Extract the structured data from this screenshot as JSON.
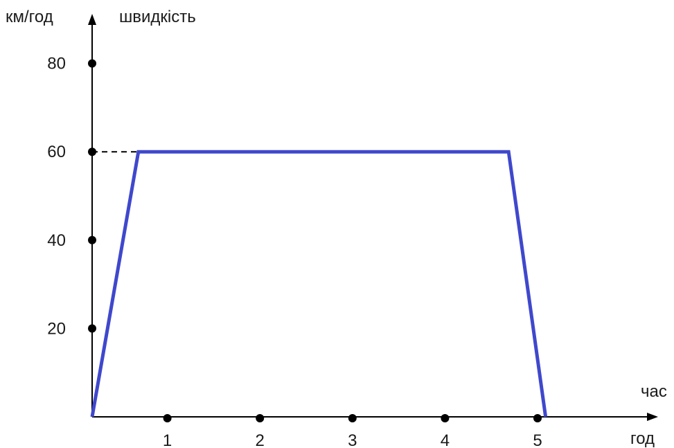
{
  "chart_data": {
    "type": "line",
    "title": "",
    "y_axis_unit": "км/год",
    "y_axis_title": "швидкість",
    "x_axis_title": "час",
    "x_axis_unit": "год",
    "x_ticks": [
      "1",
      "2",
      "3",
      "4",
      "5"
    ],
    "y_ticks": [
      "20",
      "40",
      "60",
      "80"
    ],
    "series": [
      {
        "color": "#3f48cc",
        "points": [
          {
            "x": 0,
            "y": 0
          },
          {
            "x": 0.5,
            "y": 60
          },
          {
            "x": 4.5,
            "y": 60
          },
          {
            "x": 4.9,
            "y": 0
          }
        ]
      }
    ],
    "reference_line": {
      "y": 60,
      "x_to": 0.5,
      "style": "dashed"
    },
    "xlim": [
      0,
      5.8
    ],
    "ylim": [
      0,
      95
    ],
    "grid": false,
    "axis_color": "#000000",
    "marker_color": "#000000"
  }
}
